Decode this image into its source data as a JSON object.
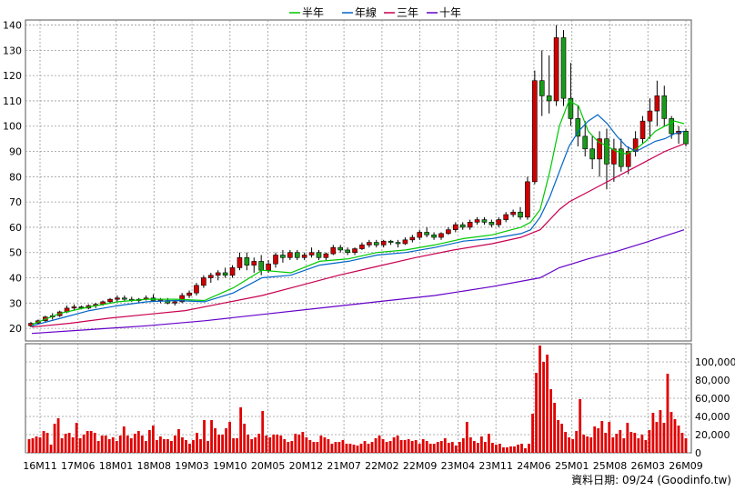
{
  "chart_data": {
    "type": "line",
    "legend": [
      "半年",
      "年線",
      "三年",
      "十年"
    ],
    "legend_placement": "top-center",
    "x_ticks": [
      "16M11",
      "17M06",
      "18M01",
      "18M08",
      "19M03",
      "19M10",
      "20M05",
      "20M12",
      "21M07",
      "22M02",
      "22M09",
      "23M04",
      "23M11",
      "24M06",
      "25M01",
      "25M08",
      "26M03",
      "26M09"
    ],
    "price_axis": {
      "ticks": [
        20,
        30,
        40,
        50,
        60,
        70,
        80,
        90,
        100,
        110,
        120,
        130,
        140
      ],
      "ylim": [
        15,
        142
      ]
    },
    "volume_axis": {
      "ticks": [
        0,
        20000,
        40000,
        60000,
        80000,
        100000
      ],
      "tick_labels": [
        "0",
        "20,000",
        "40,000",
        "60,000",
        "80,000",
        "100,000"
      ],
      "ylim": [
        0,
        120000
      ]
    },
    "grid": true,
    "series": [
      {
        "name": "半年",
        "color": "#00c800",
        "points": [
          [
            0,
            21.5
          ],
          [
            3,
            26
          ],
          [
            6,
            28.5
          ],
          [
            9,
            30.5
          ],
          [
            12,
            31.5
          ],
          [
            15,
            31.5
          ],
          [
            18,
            31
          ],
          [
            21,
            36
          ],
          [
            24,
            43
          ],
          [
            27,
            42
          ],
          [
            30,
            46.5
          ],
          [
            33,
            47.5
          ],
          [
            36,
            50
          ],
          [
            39,
            51
          ],
          [
            42,
            53
          ],
          [
            45,
            55.5
          ],
          [
            48,
            57
          ],
          [
            51,
            60
          ],
          [
            52,
            62
          ],
          [
            53,
            67
          ],
          [
            54,
            82
          ],
          [
            55,
            100
          ],
          [
            56,
            110
          ],
          [
            57,
            108
          ],
          [
            58,
            98
          ],
          [
            59,
            94
          ],
          [
            60,
            92
          ],
          [
            61,
            90
          ],
          [
            62,
            89
          ],
          [
            63,
            91
          ],
          [
            64,
            94
          ],
          [
            65,
            98
          ],
          [
            66,
            100
          ],
          [
            67,
            102
          ],
          [
            68,
            101
          ]
        ]
      },
      {
        "name": "年線",
        "color": "#0064c8",
        "points": [
          [
            0,
            21
          ],
          [
            3,
            24
          ],
          [
            6,
            27
          ],
          [
            9,
            29
          ],
          [
            12,
            30.5
          ],
          [
            15,
            31
          ],
          [
            18,
            30.5
          ],
          [
            21,
            34
          ],
          [
            24,
            40
          ],
          [
            27,
            41
          ],
          [
            30,
            45
          ],
          [
            33,
            46.5
          ],
          [
            36,
            49
          ],
          [
            39,
            50
          ],
          [
            42,
            52
          ],
          [
            45,
            54.5
          ],
          [
            48,
            55.5
          ],
          [
            51,
            57.5
          ],
          [
            52,
            59
          ],
          [
            53,
            64
          ],
          [
            54,
            72
          ],
          [
            55,
            82
          ],
          [
            56,
            92
          ],
          [
            57,
            98
          ],
          [
            58,
            102
          ],
          [
            59,
            104.5
          ],
          [
            60,
            101
          ],
          [
            61,
            96
          ],
          [
            62,
            92
          ],
          [
            63,
            90
          ],
          [
            64,
            92
          ],
          [
            65,
            94
          ],
          [
            66,
            95
          ],
          [
            67,
            97
          ],
          [
            68,
            98
          ]
        ]
      },
      {
        "name": "三年",
        "color": "#c80050",
        "points": [
          [
            0,
            20.5
          ],
          [
            4,
            22
          ],
          [
            8,
            24
          ],
          [
            12,
            25.5
          ],
          [
            16,
            27
          ],
          [
            20,
            30
          ],
          [
            24,
            33
          ],
          [
            28,
            37
          ],
          [
            32,
            41
          ],
          [
            36,
            44.5
          ],
          [
            40,
            48
          ],
          [
            44,
            51
          ],
          [
            48,
            53.5
          ],
          [
            51,
            56
          ],
          [
            53,
            59
          ],
          [
            54,
            63
          ],
          [
            55,
            67
          ],
          [
            56,
            70
          ],
          [
            58,
            74
          ],
          [
            60,
            78
          ],
          [
            62,
            82
          ],
          [
            64,
            86
          ],
          [
            66,
            90
          ],
          [
            68,
            93
          ]
        ]
      },
      {
        "name": "十年",
        "color": "#6400c8",
        "points": [
          [
            0,
            18
          ],
          [
            6,
            19.5
          ],
          [
            12,
            21
          ],
          [
            18,
            23
          ],
          [
            24,
            25.5
          ],
          [
            30,
            28
          ],
          [
            36,
            30.5
          ],
          [
            42,
            33
          ],
          [
            48,
            36.5
          ],
          [
            53,
            40
          ],
          [
            55,
            44
          ],
          [
            58,
            47.5
          ],
          [
            61,
            50.5
          ],
          [
            64,
            54
          ],
          [
            66,
            56.5
          ],
          [
            68,
            59
          ]
        ]
      }
    ],
    "candles": [
      [
        21,
        22.5,
        20.5,
        22
      ],
      [
        22,
        23.5,
        21.5,
        23
      ],
      [
        23,
        25,
        22.5,
        24.5
      ],
      [
        24.5,
        26,
        23.5,
        25
      ],
      [
        25,
        27,
        24.5,
        26.5
      ],
      [
        26.5,
        29,
        26,
        28
      ],
      [
        28,
        29.5,
        27,
        28.5
      ],
      [
        28.5,
        29,
        27.5,
        28
      ],
      [
        28,
        29.5,
        27.5,
        29
      ],
      [
        29,
        30,
        28,
        29.5
      ],
      [
        29.5,
        31,
        29,
        30.5
      ],
      [
        30.5,
        32,
        30,
        31.5
      ],
      [
        31.5,
        33,
        30.5,
        32
      ],
      [
        32,
        33,
        31,
        31.5
      ],
      [
        31.5,
        32.5,
        30.5,
        31
      ],
      [
        31,
        32,
        30,
        31.5
      ],
      [
        31.5,
        33,
        31,
        32
      ],
      [
        32,
        33.5,
        31,
        31
      ],
      [
        31,
        32,
        30,
        31.5
      ],
      [
        31,
        32,
        29.5,
        30
      ],
      [
        30,
        31,
        29,
        30.5
      ],
      [
        30.5,
        34,
        30,
        33
      ],
      [
        33,
        35,
        32,
        34
      ],
      [
        34,
        38,
        33,
        37
      ],
      [
        37,
        41,
        36,
        40
      ],
      [
        40,
        42,
        38,
        41
      ],
      [
        41,
        43,
        39,
        42
      ],
      [
        42,
        44,
        40,
        41
      ],
      [
        41,
        45,
        40,
        44
      ],
      [
        44,
        50,
        43,
        48
      ],
      [
        48,
        50,
        43,
        45
      ],
      [
        45,
        48,
        42,
        46.5
      ],
      [
        46.5,
        49,
        41,
        43
      ],
      [
        43,
        47,
        42,
        45.5
      ],
      [
        45.5,
        50,
        44,
        49
      ],
      [
        49,
        51,
        46,
        48
      ],
      [
        48,
        51,
        47,
        50
      ],
      [
        50,
        51,
        47,
        48
      ],
      [
        48,
        50,
        47,
        49
      ],
      [
        49,
        52,
        48,
        50
      ],
      [
        50,
        51,
        47,
        48
      ],
      [
        48,
        50,
        47,
        49.5
      ],
      [
        49.5,
        53,
        49,
        52
      ],
      [
        52,
        53,
        50,
        51
      ],
      [
        51,
        52,
        49,
        50
      ],
      [
        50,
        52,
        49,
        51.5
      ],
      [
        51.5,
        54,
        51,
        53
      ],
      [
        53,
        55,
        52,
        54
      ],
      [
        54,
        55,
        52,
        53
      ],
      [
        53,
        55,
        52,
        54.5
      ],
      [
        54.5,
        55,
        53,
        54
      ],
      [
        54,
        55,
        52,
        53.5
      ],
      [
        53.5,
        56,
        53,
        55
      ],
      [
        55,
        57,
        54,
        56
      ],
      [
        56,
        59,
        55,
        58
      ],
      [
        58,
        60,
        56,
        57
      ],
      [
        57,
        58,
        55,
        56
      ],
      [
        56,
        58,
        55,
        57.5
      ],
      [
        57.5,
        60,
        57,
        59
      ],
      [
        59,
        62,
        58,
        61
      ],
      [
        61,
        62,
        59,
        60
      ],
      [
        60,
        63,
        59,
        62
      ],
      [
        62,
        64,
        61,
        63
      ],
      [
        63,
        64,
        61,
        62
      ],
      [
        62,
        63,
        60,
        61
      ],
      [
        61,
        64,
        60,
        63
      ],
      [
        63,
        66,
        62,
        65
      ],
      [
        65,
        67,
        64,
        66
      ],
      [
        66,
        68,
        63,
        64
      ],
      [
        64,
        80,
        63,
        78
      ],
      [
        78,
        122,
        77,
        118
      ],
      [
        118,
        130,
        104,
        112
      ],
      [
        112,
        128,
        105,
        110
      ],
      [
        110,
        140,
        108,
        135
      ],
      [
        135,
        138,
        108,
        111
      ],
      [
        111,
        125,
        100,
        103
      ],
      [
        103,
        108,
        92,
        96
      ],
      [
        96,
        102,
        88,
        91
      ],
      [
        91,
        96,
        83,
        87
      ],
      [
        87,
        98,
        80,
        95
      ],
      [
        95,
        99,
        75,
        85
      ],
      [
        85,
        95,
        78,
        91
      ],
      [
        91,
        95,
        82,
        84
      ],
      [
        84,
        92,
        81,
        90
      ],
      [
        90,
        98,
        88,
        95
      ],
      [
        95,
        104,
        93,
        102
      ],
      [
        102,
        111,
        95,
        106
      ],
      [
        106,
        118,
        100,
        112
      ],
      [
        112,
        116,
        100,
        103
      ],
      [
        103,
        104,
        95,
        97
      ],
      [
        97,
        100,
        93,
        98
      ],
      [
        98,
        99,
        92,
        93
      ]
    ],
    "volume": [
      15000,
      16000,
      18000,
      17000,
      24000,
      22000,
      9000,
      32000,
      38000,
      16000,
      21000,
      22000,
      17000,
      33000,
      16000,
      20000,
      24000,
      24000,
      22000,
      13000,
      19000,
      19000,
      15000,
      17000,
      13000,
      19000,
      29000,
      19000,
      16000,
      21000,
      24000,
      19000,
      13000,
      25000,
      30000,
      14000,
      18000,
      15000,
      15000,
      13000,
      19000,
      26000,
      17000,
      14000,
      10000,
      14000,
      22000,
      15000,
      36000,
      13000,
      36000,
      27000,
      20000,
      20000,
      27000,
      34000,
      16000,
      16000,
      50000,
      32000,
      20000,
      15000,
      17000,
      21000,
      46000,
      19000,
      17000,
      20000,
      20000,
      19000,
      15000,
      12000,
      13000,
      21000,
      20000,
      23000,
      17000,
      14000,
      12000,
      12000,
      19000,
      17000,
      15000,
      10000,
      12000,
      12000,
      14000,
      10000,
      10000,
      9000,
      8000,
      10000,
      13000,
      10000,
      12000,
      16000,
      19000,
      15000,
      12000,
      13000,
      17000,
      19000,
      14000,
      14000,
      15000,
      13000,
      14000,
      10000,
      15000,
      13000,
      10000,
      10000,
      12000,
      13000,
      16000,
      11000,
      12000,
      8000,
      12000,
      16000,
      34000,
      17000,
      13000,
      11000,
      18000,
      12000,
      21000,
      11000,
      9000,
      10000,
      6000,
      6000,
      7000,
      7000,
      9000,
      10000,
      5000,
      10000,
      43000,
      88000,
      118000,
      100000,
      108000,
      70000,
      55000,
      36000,
      32000,
      23000,
      17000,
      15000,
      24000,
      59000,
      20000,
      18000,
      17000,
      29000,
      27000,
      35000,
      22000,
      34000,
      17000,
      21000,
      25000,
      16000,
      33000,
      23000,
      22000,
      16000,
      20000,
      14000,
      25000,
      44000,
      34000,
      47000,
      33000,
      87000,
      45000,
      37000,
      30000,
      22000,
      16000
    ],
    "footer_text": "資料日期: 09/24  (Goodinfo.tw)"
  },
  "colors": {
    "up": "#d10000",
    "down": "#1a9c1a",
    "volume": "#e00000",
    "grid": "#999999"
  }
}
